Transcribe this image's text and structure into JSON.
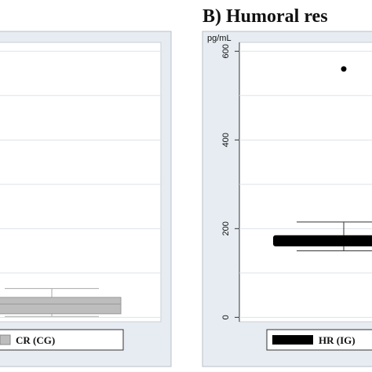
{
  "chart_data": [
    {
      "type": "box",
      "panel_title": "",
      "legend": [
        {
          "label": "CR (CG)",
          "color": "#bdbdbd"
        }
      ],
      "series": [
        {
          "name": "CR (CG)",
          "color": "#bdbdbd",
          "whisker_low": 2,
          "q1": 8,
          "median": 30,
          "q3": 45,
          "whisker_high": 65
        }
      ],
      "ylim": [
        -10,
        620
      ],
      "grid": true
    },
    {
      "type": "box",
      "panel_title": "B) Humoral res",
      "unit_label": "pg/mL",
      "y_ticks": [
        0,
        200,
        400,
        600
      ],
      "legend": [
        {
          "label": "HR (IG)",
          "color": "#000000"
        }
      ],
      "series": [
        {
          "name": "HR (IG)",
          "color": "#000000",
          "whisker_low": 150,
          "q1": 160,
          "median": 170,
          "q3": 185,
          "whisker_high": 215,
          "outliers": [
            560
          ]
        }
      ],
      "ylim": [
        -10,
        620
      ],
      "grid": true
    }
  ]
}
